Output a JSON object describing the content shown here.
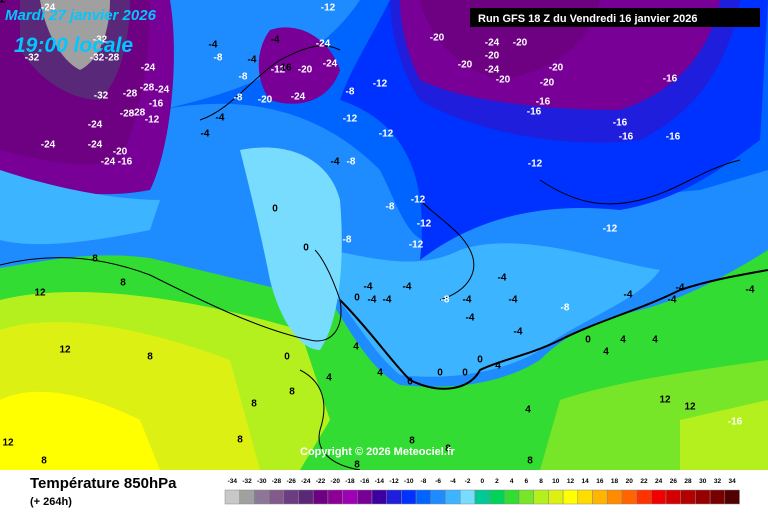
{
  "header": {
    "date": "Mardi 27 janvier 2026",
    "time": "19:00 locale",
    "run": "Run GFS 18 Z du Vendredi 16 janvier 2026"
  },
  "copyright": "Copyright © 2026 Meteociel.fr",
  "footer": {
    "title": "Température 850hPa",
    "subtitle": "(+ 264h)"
  },
  "legend": {
    "values": [
      -34,
      -32,
      -30,
      -28,
      -26,
      -24,
      -22,
      -20,
      -18,
      -16,
      -14,
      -12,
      -10,
      -8,
      -6,
      -4,
      -2,
      0,
      2,
      4,
      6,
      8,
      10,
      12,
      14,
      16,
      18,
      20,
      22,
      24,
      26,
      28,
      30,
      32,
      34
    ],
    "colors": [
      "#c8c8c8",
      "#a0a0a0",
      "#8c7896",
      "#825a8c",
      "#6e3c82",
      "#5a2878",
      "#6e0082",
      "#8c0096",
      "#a000b4",
      "#780096",
      "#3c00a0",
      "#1e1edc",
      "#0032ff",
      "#0064ff",
      "#1e8cff",
      "#3cb4ff",
      "#78dcff",
      "#00c896",
      "#00d25a",
      "#32dc32",
      "#78e628",
      "#b4f01e",
      "#dcf014",
      "#ffff00",
      "#ffdc00",
      "#ffb400",
      "#ff8c00",
      "#ff6400",
      "#ff3200",
      "#f00000",
      "#d20000",
      "#b40000",
      "#960000",
      "#780000",
      "#500000"
    ]
  },
  "map_labels": [
    -24,
    -32,
    -32,
    -32,
    -28,
    -24,
    -28,
    -24,
    -28,
    -16,
    -32,
    -28,
    -12,
    -28,
    -24,
    -24,
    -24,
    -20,
    -16,
    -24,
    -12,
    -4,
    -4,
    -24,
    -8,
    -4,
    -12,
    16,
    -20,
    -24,
    -8,
    -20,
    -24,
    -8,
    -12,
    -8,
    -12,
    -12,
    -4,
    -4,
    -4,
    -8,
    0,
    0,
    -8,
    -8,
    -12,
    -12,
    -12,
    -12,
    -12,
    -20,
    -24,
    -20,
    -20,
    -20,
    -24,
    -20,
    -20,
    -20,
    -16,
    -16,
    -16,
    -16,
    -16,
    -16,
    8,
    12,
    8,
    12,
    8,
    12,
    8,
    0,
    4,
    4,
    4,
    0,
    -4,
    -4,
    -4,
    -4,
    -8,
    -4,
    -4,
    -4,
    -4,
    -4,
    -8,
    0,
    0,
    0,
    0,
    4,
    0,
    4,
    4,
    4,
    -4,
    -4,
    -4,
    -4,
    4,
    8,
    8,
    8,
    12,
    -16,
    12,
    8,
    8,
    8,
    8,
    12
  ]
}
